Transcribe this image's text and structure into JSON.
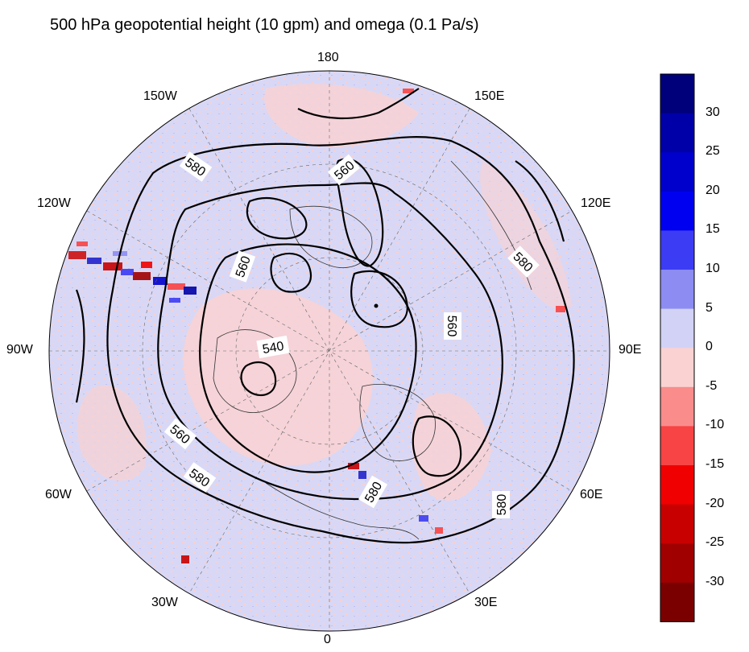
{
  "title": "500 hPa geopotential height (10 gpm) and omega (0.1 Pa/s)",
  "longitude_labels": {
    "lon_180": "180",
    "lon_150e": "150E",
    "lon_120e": "120E",
    "lon_90e": "90E",
    "lon_60e": "60E",
    "lon_30e": "30E",
    "lon_0": "0",
    "lon_30w": "30W",
    "lon_60w": "60W",
    "lon_90w": "90W",
    "lon_120w": "120W",
    "lon_150w": "150W"
  },
  "contour_labels": {
    "c1": "580",
    "c2": "560",
    "c3": "580",
    "c4": "560",
    "c5": "560",
    "c6": "540",
    "c7": "560",
    "c8": "580",
    "c9": "580",
    "c10": "580"
  },
  "colorbar": {
    "labels": [
      "30",
      "25",
      "20",
      "15",
      "10",
      "5",
      "0",
      "-5",
      "-10",
      "-15",
      "-20",
      "-25",
      "-30"
    ],
    "colors": [
      "#00007a",
      "#0000a8",
      "#0000cc",
      "#0000f0",
      "#3c3cf5",
      "#8c8cf3",
      "#d2d2f6",
      "#fad2d2",
      "#fa8c8c",
      "#f84444",
      "#f00000",
      "#c80000",
      "#a00000",
      "#7a0000"
    ]
  },
  "map_colors": {
    "background_pink": "#fad2d2",
    "background_lilac": "#d2d2f6",
    "coastline": "#000000"
  }
}
